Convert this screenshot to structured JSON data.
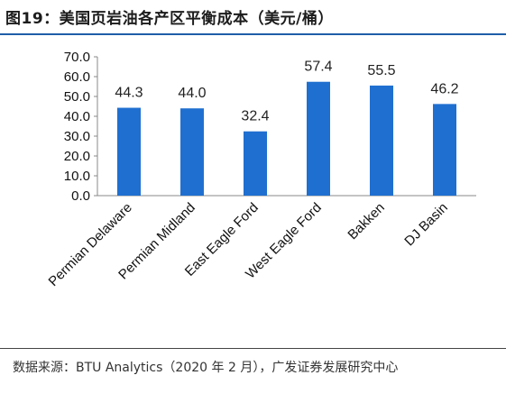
{
  "figure": {
    "title": "图19：美国页岩油各产区平衡成本（美元/桶）",
    "source": "数据来源：BTU Analytics（2020 年 2 月），广发证券发展研究中心"
  },
  "chart_data": {
    "type": "bar",
    "categories": [
      "Permian Delaware",
      "Permian Midland",
      "East Eagle Ford",
      "West Eagle Ford",
      "Bakken",
      "DJ Basin"
    ],
    "values": [
      44.3,
      44.0,
      32.4,
      57.4,
      55.5,
      46.2
    ],
    "value_labels": [
      "44.3",
      "44.0",
      "32.4",
      "57.4",
      "55.5",
      "46.2"
    ],
    "yticks": [
      0,
      10,
      20,
      30,
      40,
      50,
      60,
      70
    ],
    "ytick_labels": [
      "0.0",
      "10.0",
      "20.0",
      "30.0",
      "40.0",
      "50.0",
      "60.0",
      "70.0"
    ],
    "ylim": [
      0,
      70
    ],
    "bar_color": "#1f6fd0",
    "grid": false,
    "legend": "none"
  }
}
